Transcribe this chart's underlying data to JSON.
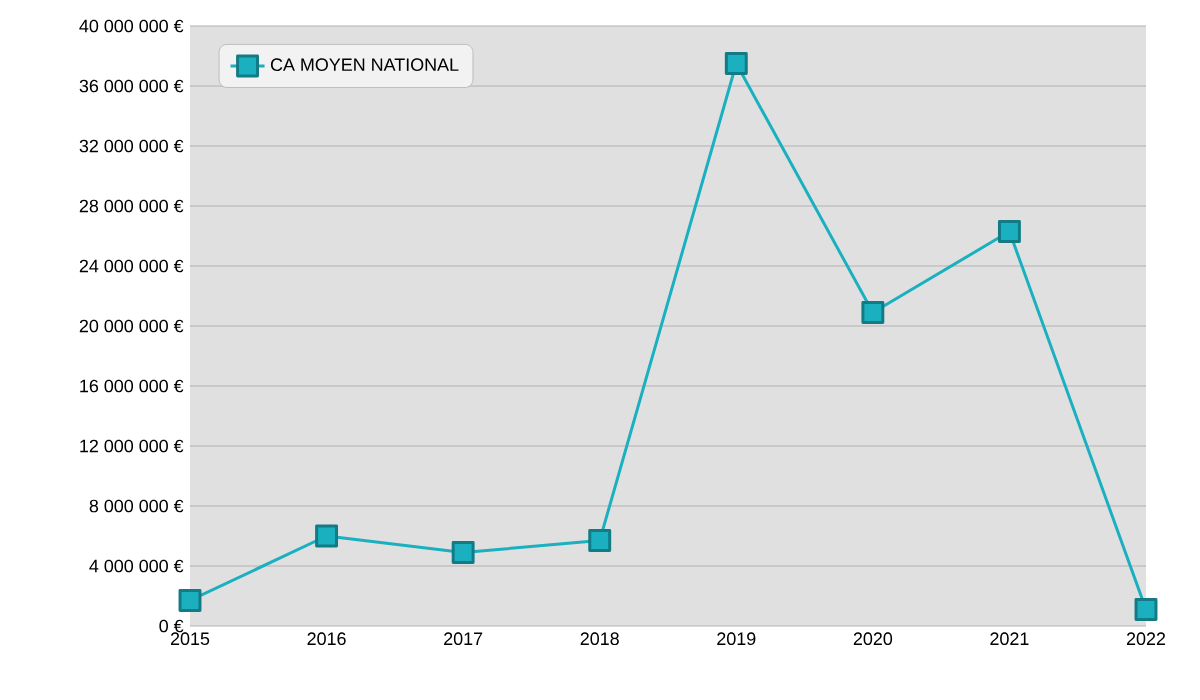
{
  "chart_data": {
    "type": "line",
    "x": [
      2015,
      2016,
      2017,
      2018,
      2019,
      2020,
      2021,
      2022
    ],
    "series": [
      {
        "name": "CA MOYEN NATIONAL",
        "color": "#1ab0c0",
        "values": [
          1700000,
          6000000,
          4900000,
          5700000,
          37500000,
          20900000,
          26300000,
          1100000
        ]
      }
    ],
    "xlim": [
      2015,
      2022
    ],
    "xticks": [
      2015,
      2016,
      2017,
      2018,
      2019,
      2020,
      2021,
      2022
    ],
    "ylim": [
      0,
      40000000
    ],
    "yticks": [
      {
        "value": 0,
        "label": "0 €"
      },
      {
        "value": 4000000,
        "label": "4 000 000 €"
      },
      {
        "value": 8000000,
        "label": "8 000 000 €"
      },
      {
        "value": 12000000,
        "label": "12 000 000 €"
      },
      {
        "value": 16000000,
        "label": "16 000 000 €"
      },
      {
        "value": 20000000,
        "label": "20 000 000 €"
      },
      {
        "value": 24000000,
        "label": "24 000 000 €"
      },
      {
        "value": 28000000,
        "label": "28 000 000 €"
      },
      {
        "value": 32000000,
        "label": "32 000 000 €"
      },
      {
        "value": 36000000,
        "label": "36 000 000 €"
      },
      {
        "value": 40000000,
        "label": "40 000 000 €"
      }
    ],
    "grid": "y",
    "legend": "top left",
    "marker": "square",
    "line_style": "solid"
  }
}
